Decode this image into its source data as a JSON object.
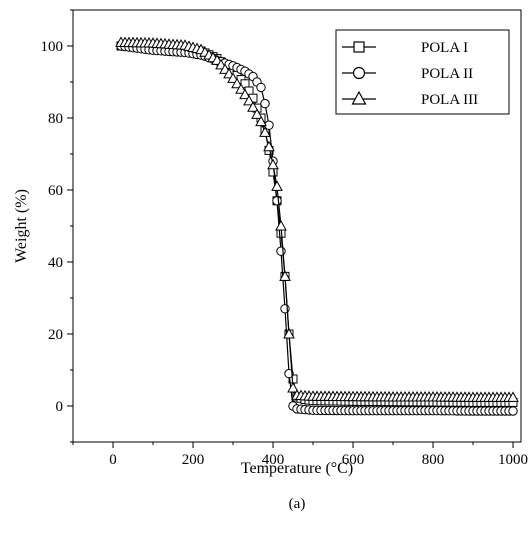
{
  "figure": {
    "panel_label": "(a)"
  },
  "chart_data": {
    "type": "line",
    "title": "",
    "xlabel": "Temperature (°C)",
    "ylabel": "Weight (%)",
    "xlim": [
      -100,
      1020
    ],
    "ylim": [
      -10,
      110
    ],
    "xticks": [
      0,
      200,
      400,
      600,
      800,
      1000
    ],
    "yticks": [
      0,
      20,
      40,
      60,
      80,
      100
    ],
    "grid": false,
    "legend_position": "top-right",
    "series": [
      {
        "name": "POLA I",
        "marker": "square",
        "color": "#000000",
        "x": [
          20,
          100,
          180,
          220,
          260,
          300,
          330,
          350,
          370,
          380,
          390,
          400,
          410,
          420,
          430,
          440,
          450,
          460,
          480,
          500,
          600,
          700,
          800,
          900,
          1000
        ],
        "y": [
          100,
          99.6,
          99.2,
          98.6,
          96.5,
          93.0,
          89.5,
          85.5,
          80.0,
          76.5,
          71.0,
          65.0,
          57.0,
          48.0,
          36.0,
          20.0,
          7.5,
          2.5,
          1.8,
          1.5,
          1.3,
          1.2,
          1.1,
          1.0,
          1.0
        ]
      },
      {
        "name": "POLA II",
        "marker": "circle",
        "color": "#000000",
        "x": [
          20,
          100,
          180,
          220,
          260,
          300,
          330,
          350,
          370,
          380,
          390,
          400,
          410,
          420,
          430,
          440,
          450,
          460,
          480,
          500,
          600,
          700,
          800,
          900,
          1000
        ],
        "y": [
          100,
          98.8,
          98.2,
          97.5,
          96.0,
          94.5,
          93.0,
          91.5,
          88.5,
          84.0,
          78.0,
          68.0,
          57.0,
          43.0,
          27.0,
          9.0,
          0.0,
          -0.8,
          -1.0,
          -1.2,
          -1.3,
          -1.3,
          -1.3,
          -1.4,
          -1.4
        ]
      },
      {
        "name": "POLA III",
        "marker": "triangle",
        "color": "#000000",
        "x": [
          20,
          100,
          180,
          220,
          260,
          300,
          330,
          350,
          370,
          380,
          390,
          400,
          410,
          420,
          430,
          440,
          450,
          460,
          480,
          500,
          600,
          700,
          800,
          900,
          1000
        ],
        "y": [
          101,
          100.8,
          100.2,
          99.0,
          96.0,
          91.0,
          86.5,
          83.0,
          79.0,
          76.0,
          72.0,
          67.0,
          61.0,
          50.0,
          36.0,
          20.0,
          5.0,
          3.0,
          2.8,
          2.7,
          2.6,
          2.5,
          2.5,
          2.4,
          2.4
        ]
      }
    ]
  }
}
